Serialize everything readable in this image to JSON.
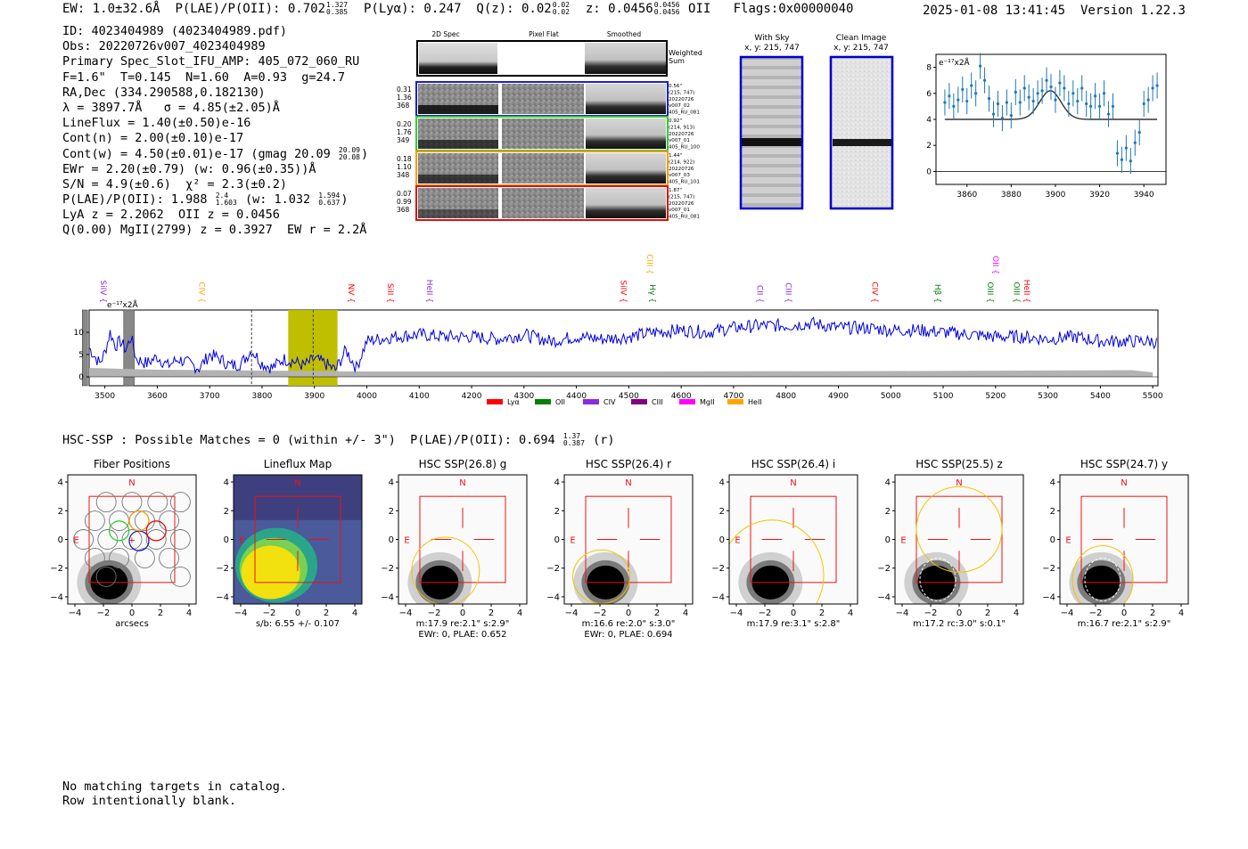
{
  "header": {
    "ew": "EW: 1.0±32.6Å",
    "plae_label": "P(LAE)/P(OII): 0.702",
    "plae_hi": "1.327",
    "plae_lo": "0.385",
    "plya": "P(Lyα): 0.247",
    "qz_label": "Q(z): 0.02",
    "qz_hi": "0.02",
    "qz_lo": "0.02",
    "z_label": "z: 0.0456",
    "z_hi": "0.0456",
    "z_lo": "0.0456",
    "z_line": "OII",
    "flags": "Flags:0x00000040",
    "datetime": "2025-01-08 13:41:45",
    "version": "Version 1.22.3"
  },
  "info": {
    "id": "ID: 4023404989 (4023404989.pdf)",
    "obs": "Obs: 20220726v007_4023404989",
    "primary": "Primary Spec_Slot_IFU_AMP: 405_072_060_RU",
    "params": "F=1.6\"  T=0.145  N=1.60  A=0.93  g=24.7",
    "radec": "RA,Dec (334.290588,0.182130)",
    "lambda": "λ = 3897.7Å   σ = 4.85(±2.05)Å",
    "lineflux": "LineFlux = 1.40(±0.50)e-16",
    "contn": "Cont(n) = 2.00(±0.10)e-17",
    "contw": "Cont(w) = 4.50(±0.01)e-17 (gmag 20.09",
    "contw_hi": "20.09",
    "contw_lo": "20.08",
    "ewr": "EWr = 2.20(±0.79) (w: 0.96(±0.35))Å",
    "sn": "S/N = 4.9(±0.6)  χ² = 2.3(±0.2)",
    "plae": "P(LAE)/P(OII): 1.988",
    "plae_hi": "2.4",
    "plae_lo": "1.603",
    "plae_w": "(w: 1.032",
    "plae_w_hi": "1.594",
    "plae_w_lo": "0.637",
    "lya": "LyA z = 2.2062  OII z = 0.0456",
    "mgii": "Q(0.00) MgII(2799) z = 0.3927  EW r = 2.2Å"
  },
  "cutouts": {
    "col_titles": [
      "2D Spec",
      "Pixel Flat",
      "Smoothed"
    ],
    "weighted_label": "Weighted\nSum",
    "rows": [
      {
        "stats": [
          "0.31",
          "1.36",
          "368"
        ],
        "meta": [
          "0.56\"",
          "(215, 747)",
          "20220726",
          "v007_02",
          "405_RU_081"
        ],
        "color": "#1f1fcc"
      },
      {
        "stats": [
          "0.20",
          "1.76",
          "349"
        ],
        "meta": [
          "0.92\"",
          "(214, 913)",
          "20220726",
          "v007_01",
          "405_RU_100"
        ],
        "color": "#33cc33"
      },
      {
        "stats": [
          "0.18",
          "1.10",
          "348"
        ],
        "meta": [
          "1.44\"",
          "(214, 922)",
          "20220726",
          "v007_03",
          "405_RU_101"
        ],
        "color": "#ff9900"
      },
      {
        "stats": [
          "0.07",
          "0.99",
          "368"
        ],
        "meta": [
          "1.87\"",
          "(215, 747)",
          "20220726",
          "v007_01",
          "405_RU_081"
        ],
        "color": "#dd1111"
      }
    ],
    "with_sky_title": "With Sky",
    "with_sky_xy": "x, y: 215, 747",
    "clean_title": "Clean Image",
    "clean_xy": "x, y: 215, 747"
  },
  "chart_data": [
    {
      "type": "scatter",
      "name": "zoom-emission-line",
      "ylabel": "e⁻¹⁷x2Å",
      "xlim": [
        3846,
        3950
      ],
      "ylim": [
        -1,
        9
      ],
      "xticks": [
        3860,
        3880,
        3900,
        3920,
        3940
      ],
      "yticks": [
        0,
        2,
        4,
        6,
        8
      ],
      "points": [
        {
          "x": 3850,
          "y": 5.3
        },
        {
          "x": 3852,
          "y": 5.8
        },
        {
          "x": 3854,
          "y": 5.0
        },
        {
          "x": 3856,
          "y": 5.5
        },
        {
          "x": 3858,
          "y": 6.3
        },
        {
          "x": 3860,
          "y": 5.4
        },
        {
          "x": 3862,
          "y": 6.6
        },
        {
          "x": 3864,
          "y": 6.0
        },
        {
          "x": 3866,
          "y": 8.1
        },
        {
          "x": 3868,
          "y": 7.0
        },
        {
          "x": 3870,
          "y": 5.6
        },
        {
          "x": 3872,
          "y": 4.4
        },
        {
          "x": 3874,
          "y": 5.2
        },
        {
          "x": 3876,
          "y": 4.1
        },
        {
          "x": 3878,
          "y": 5.3
        },
        {
          "x": 3880,
          "y": 4.3
        },
        {
          "x": 3882,
          "y": 6.1
        },
        {
          "x": 3884,
          "y": 5.3
        },
        {
          "x": 3886,
          "y": 6.4
        },
        {
          "x": 3888,
          "y": 5.7
        },
        {
          "x": 3890,
          "y": 5.4
        },
        {
          "x": 3892,
          "y": 6.0
        },
        {
          "x": 3894,
          "y": 6.2
        },
        {
          "x": 3896,
          "y": 7.0
        },
        {
          "x": 3898,
          "y": 6.5
        },
        {
          "x": 3900,
          "y": 5.5
        },
        {
          "x": 3902,
          "y": 6.8
        },
        {
          "x": 3904,
          "y": 6.4
        },
        {
          "x": 3906,
          "y": 5.2
        },
        {
          "x": 3908,
          "y": 6.0
        },
        {
          "x": 3910,
          "y": 5.4
        },
        {
          "x": 3912,
          "y": 6.4
        },
        {
          "x": 3914,
          "y": 5.2
        },
        {
          "x": 3916,
          "y": 5.0
        },
        {
          "x": 3918,
          "y": 5.8
        },
        {
          "x": 3920,
          "y": 5.0
        },
        {
          "x": 3922,
          "y": 6.0
        },
        {
          "x": 3924,
          "y": 4.4
        },
        {
          "x": 3926,
          "y": 5.0
        },
        {
          "x": 3928,
          "y": 1.4
        },
        {
          "x": 3930,
          "y": 0.9
        },
        {
          "x": 3932,
          "y": 1.8
        },
        {
          "x": 3934,
          "y": 0.8
        },
        {
          "x": 3936,
          "y": 2.2
        },
        {
          "x": 3938,
          "y": 3.0
        },
        {
          "x": 3940,
          "y": 5.2
        },
        {
          "x": 3942,
          "y": 5.5
        },
        {
          "x": 3944,
          "y": 6.4
        },
        {
          "x": 3946,
          "y": 6.6
        }
      ],
      "err": 1.0,
      "model": {
        "continuum": 4.0,
        "amplitude": 2.2,
        "center": 3897.7,
        "sigma": 4.85,
        "xrange": [
          3850,
          3946
        ]
      }
    },
    {
      "type": "line",
      "name": "full-spectrum",
      "ylabel": "e⁻¹⁷x2Å",
      "xlim": [
        3470,
        5510
      ],
      "ylim": [
        -2,
        15
      ],
      "xticks": [
        3500,
        3600,
        3700,
        3800,
        3900,
        4000,
        4100,
        4200,
        4300,
        4400,
        4500,
        4600,
        4700,
        4800,
        4900,
        5000,
        5100,
        5200,
        5300,
        5400,
        5500
      ],
      "yticks": [
        0,
        5,
        10
      ],
      "series": [
        {
          "name": "flux",
          "x": [
            3470,
            3490,
            3500,
            3510,
            3520,
            3530,
            3540,
            3550,
            3560,
            3580,
            3600,
            3620,
            3640,
            3660,
            3680,
            3700,
            3720,
            3740,
            3760,
            3780,
            3800,
            3820,
            3840,
            3860,
            3880,
            3900,
            3920,
            3940,
            3960,
            3980,
            4000,
            4050,
            4100,
            4150,
            4200,
            4250,
            4300,
            4350,
            4400,
            4450,
            4500,
            4550,
            4600,
            4650,
            4700,
            4750,
            4800,
            4850,
            4900,
            4950,
            5000,
            5050,
            5100,
            5150,
            5200,
            5250,
            5300,
            5350,
            5400,
            5450,
            5500,
            5510
          ],
          "y": [
            6.5,
            3.0,
            5.5,
            10.0,
            7.0,
            8.0,
            6.0,
            9.0,
            4.0,
            3.0,
            4.5,
            2.5,
            4.0,
            3.0,
            2.0,
            5.0,
            4.0,
            2.5,
            3.0,
            6.0,
            3.0,
            2.0,
            4.0,
            3.5,
            2.5,
            4.0,
            3.0,
            1.5,
            6.0,
            2.0,
            8.0,
            9.0,
            9.5,
            9.0,
            9.0,
            8.5,
            9.5,
            8.0,
            9.0,
            8.5,
            9.0,
            10.0,
            10.5,
            10.0,
            11.0,
            11.5,
            11.5,
            12.0,
            11.0,
            11.0,
            10.5,
            10.5,
            10.0,
            9.5,
            9.0,
            9.0,
            8.5,
            9.0,
            8.0,
            8.0,
            8.0,
            7.5
          ]
        },
        {
          "name": "error",
          "x": [
            3470,
            3600,
            3800,
            4000,
            4500,
            5000,
            5460,
            5500
          ],
          "y": [
            2.0,
            1.6,
            1.4,
            1.2,
            1.2,
            1.3,
            1.5,
            1.0
          ]
        }
      ],
      "bad_regions": [
        [
          3536,
          3556
        ],
        [
          3457,
          3467
        ]
      ],
      "highlight": [
        3850,
        3944
      ],
      "dashed_lines": [
        3780,
        3897.7
      ],
      "legend": [
        {
          "label": "Lyα",
          "color": "#ff0000"
        },
        {
          "label": "OII",
          "color": "#008000"
        },
        {
          "label": "CIV",
          "color": "#8a2be2"
        },
        {
          "label": "CIII",
          "color": "#800080"
        },
        {
          "label": "MgII",
          "color": "#ff00ff"
        },
        {
          "label": "HeII",
          "color": "#ffa500"
        }
      ],
      "line_labels": [
        {
          "label": "SiIV",
          "x": 3492,
          "color": "#8a2be2",
          "row": 0
        },
        {
          "label": "CIV",
          "x": 3680,
          "color": "#ffa500",
          "row": 0
        },
        {
          "label": "NV",
          "x": 3965,
          "color": "#ff0000",
          "row": 0
        },
        {
          "label": "SiII",
          "x": 4040,
          "color": "#ff0000",
          "row": 0
        },
        {
          "label": "HeII",
          "x": 4115,
          "color": "#8a2be2",
          "row": 0
        },
        {
          "label": "SiIV",
          "x": 4485,
          "color": "#ff0000",
          "row": 0
        },
        {
          "label": "CIII",
          "x": 4535,
          "color": "#ffa500",
          "row": 1
        },
        {
          "label": "Hγ",
          "x": 4540,
          "color": "#008000",
          "row": 0
        },
        {
          "label": "CII",
          "x": 4745,
          "color": "#8a2be2",
          "row": 0
        },
        {
          "label": "CIII",
          "x": 4800,
          "color": "#8a2be2",
          "row": 0
        },
        {
          "label": "CIV",
          "x": 4965,
          "color": "#ff0000",
          "row": 0
        },
        {
          "label": "Hβ",
          "x": 5085,
          "color": "#008000",
          "row": 0
        },
        {
          "label": "OII",
          "x": 5195,
          "color": "#ff00ff",
          "row": 1
        },
        {
          "label": "OIII",
          "x": 5185,
          "color": "#008000",
          "row": 0
        },
        {
          "label": "OIII",
          "x": 5235,
          "color": "#008000",
          "row": 0
        },
        {
          "label": "HeII",
          "x": 5255,
          "color": "#ff0000",
          "row": 0
        }
      ]
    }
  ],
  "hsc_header": {
    "text": "HSC-SSP : Possible Matches = 0 (within +/- 3\")  P(LAE)/P(OII): 0.694",
    "hi": "1.37",
    "lo": "0.387",
    "band": "(r)"
  },
  "stamps": [
    {
      "title": "Fiber Positions",
      "caption1": "arcsecs",
      "caption2": "",
      "kind": "fibers"
    },
    {
      "title": "Lineflux Map",
      "caption1": "s/b: 6.55 +/- 0.107",
      "caption2": "",
      "kind": "lineflux"
    },
    {
      "title": "HSC SSP(26.8) g",
      "caption1": "m:17.9  re:2.1\"  s:2.9\"",
      "caption2": "EWr: 0, PLAE: 0.652",
      "kind": "hsc"
    },
    {
      "title": "HSC SSP(26.4) r",
      "caption1": "m:16.6  re:2.0\"  s:3.0\"",
      "caption2": "EWr: 0, PLAE: 0.694",
      "kind": "hsc"
    },
    {
      "title": "HSC SSP(26.4) i",
      "caption1": "m:17.9  re:3.1\"  s:2.8\"",
      "caption2": "",
      "kind": "hsc"
    },
    {
      "title": "HSC SSP(25.5) z",
      "caption1": "m:17.2  rc:3.0\"  s:0.1\"",
      "caption2": "",
      "kind": "hsc"
    },
    {
      "title": "HSC SSP(24.7) y",
      "caption1": "m:16.7  re:2.1\"  s:2.9\"",
      "caption2": "",
      "kind": "hsc"
    }
  ],
  "stamp_axis": {
    "ticks": [
      -4,
      -2,
      0,
      2,
      4
    ],
    "north": "N",
    "east": "E"
  },
  "footer": {
    "line1": "No matching targets in catalog.",
    "line2": "Row intentionally blank."
  },
  "colors": {
    "spectrum": "#0000dd",
    "error": "#b3b3b3",
    "highlight": "#bfbf00",
    "points": "#1f77b4",
    "box": "#ee1111",
    "ellipse": "#f2c200"
  }
}
